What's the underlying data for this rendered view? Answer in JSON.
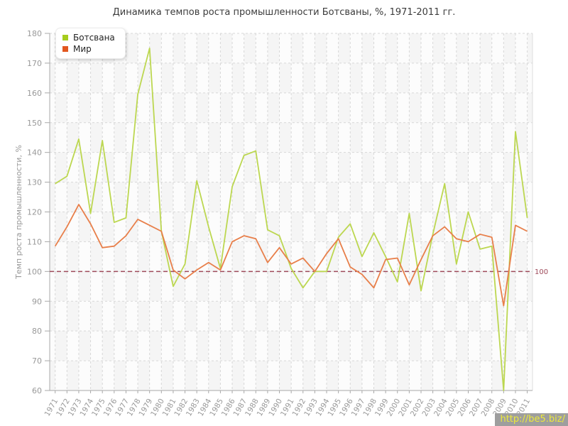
{
  "page": {
    "title": "Динамика темпов роста промышленности Ботсваны, %, 1971-2011 гг."
  },
  "legend": {
    "items": [
      {
        "label": "Ботсвана",
        "color": "#a6cd1e"
      },
      {
        "label": "Мир",
        "color": "#e2571f"
      }
    ]
  },
  "guide": {
    "label": "100",
    "value": 100,
    "color": "#9e4a5a"
  },
  "watermark": {
    "text": "http://be5.biz/"
  },
  "axes": {
    "ylabel": "Темп роста промышленности, %",
    "yticks": [
      60,
      70,
      80,
      90,
      100,
      110,
      120,
      130,
      140,
      150,
      160,
      170,
      180
    ]
  },
  "chart_data": {
    "type": "line",
    "title": "Динамика темпов роста промышленности Ботсваны, %, 1971-2011 гг.",
    "xlabel": "",
    "ylabel": "Темп роста промышленности, %",
    "ylim": [
      60,
      180
    ],
    "ytick_step": 10,
    "grid": true,
    "legend_position": "top-left",
    "guide_line": 100,
    "categories": [
      1971,
      1972,
      1973,
      1974,
      1975,
      1976,
      1977,
      1978,
      1979,
      1980,
      1981,
      1982,
      1983,
      1984,
      1985,
      1986,
      1987,
      1988,
      1989,
      1990,
      1991,
      1992,
      1993,
      1994,
      1995,
      1996,
      1997,
      1998,
      1999,
      2000,
      2001,
      2002,
      2003,
      2004,
      2005,
      2006,
      2007,
      2008,
      2009,
      2010,
      2011
    ],
    "series": [
      {
        "name": "Ботсвана",
        "color": "#bcd750",
        "values": [
          129.5,
          132,
          144.5,
          119.5,
          144,
          116.5,
          118,
          159.5,
          175,
          113.5,
          95,
          102.5,
          130.5,
          115,
          101,
          128.5,
          139,
          140.5,
          114,
          112,
          101,
          94.5,
          100,
          100,
          111.5,
          116,
          105,
          113,
          105,
          96.5,
          119.5,
          93.5,
          112.5,
          129.5,
          102.5,
          120,
          107.5,
          108.5,
          60,
          147,
          118
        ]
      },
      {
        "name": "Мир",
        "color": "#e87f4a",
        "values": [
          108.5,
          115,
          122.5,
          116,
          108,
          108.5,
          112,
          117.5,
          115.5,
          113.5,
          100.5,
          97.5,
          100.5,
          103,
          100.5,
          110,
          112,
          111,
          103,
          108,
          102.5,
          104.5,
          100,
          106,
          111,
          101.5,
          99,
          94.5,
          104,
          104.5,
          95.5,
          104,
          112,
          115,
          111,
          110,
          112.5,
          111.5,
          88.5,
          115.5,
          113.5
        ]
      }
    ]
  }
}
